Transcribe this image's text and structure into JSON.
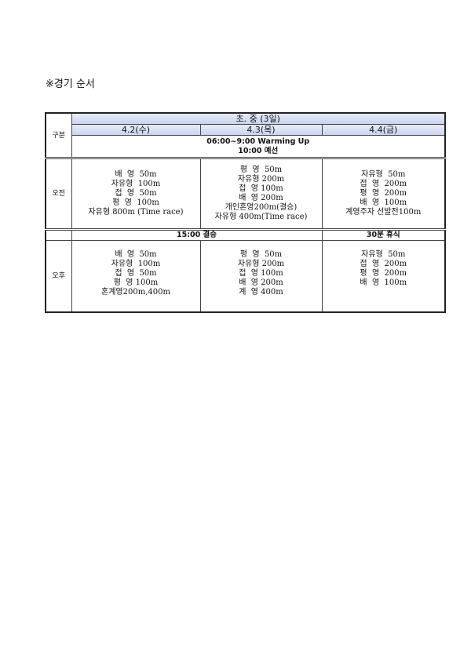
{
  "title": "※경기 순서",
  "table": {
    "row_label_header": "구분",
    "group_header": "초. 중 (3일)",
    "days": [
      "4.2(수)",
      "4.3(목)",
      "4.4(금)"
    ],
    "warmup": "06:00~9:00 Warming Up",
    "prelim": "10:00 예선",
    "morning": {
      "label": "오전",
      "cols": [
        [
          "배  영  50m",
          "자유형  100m",
          "접  영  50m",
          "평  영  100m",
          "자유형 800m (Time race)"
        ],
        [
          "평  영  50m",
          "자유형 200m",
          "접  영 100m",
          "배  영 200m",
          "개인혼영200m(결승)",
          "자유형 400m(Time race)"
        ],
        [
          "자유형  50m",
          "접  영  200m",
          "평  영  200m",
          "배  영  100m",
          "계영주자 선발전100m"
        ]
      ]
    },
    "final": "15:00 결승",
    "rest": "30분 휴식",
    "afternoon": {
      "label": "오후",
      "cols": [
        [
          "배  영  50m",
          "자유형  100m",
          "접  영  50m",
          "평  영 100m",
          "혼계영200m,400m"
        ],
        [
          "평  영  50m",
          "자유형 200m",
          "접  영 100m",
          "배  영 200m",
          "계  영 400m"
        ],
        [
          "자유형  50m",
          "접  영  200m",
          "평  영  200m",
          "배  영  100m"
        ]
      ]
    },
    "header_color": "#c9d3ef"
  }
}
